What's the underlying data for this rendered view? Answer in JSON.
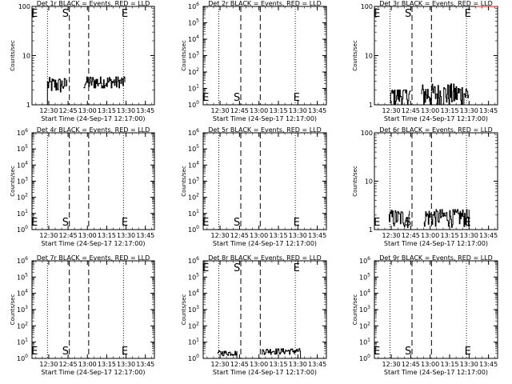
{
  "figure": {
    "start_time_label": "Start Time (24-Sep-17 12:17:00)",
    "ylabel": "Counts/sec",
    "marker_labels": {
      "start_edge": "E",
      "start": "S",
      "end": "E"
    },
    "event_color": "#000000",
    "lld_color": "#ff0000"
  },
  "chart_data": [
    {
      "type": "line",
      "title": "Det 1r BLACK = Events, RED = LLD",
      "ylabel": "Counts/sec",
      "yscale": "log",
      "ylim": [
        1,
        100
      ],
      "yticks": [
        "1",
        "10",
        "100"
      ],
      "x_range": [
        "12:17",
        "13:52"
      ],
      "xticks": [
        "12:30",
        "12:45",
        "13:00",
        "13:15",
        "13:30",
        "13:45"
      ],
      "dotted_lines": [
        "12:29",
        "13:28"
      ],
      "dashed_lines": [
        "12:46",
        "13:01"
      ],
      "marker_positions": {
        "E_left": "12:19",
        "S": "12:43",
        "E_right": "13:29"
      },
      "series": [
        {
          "color": "#000000",
          "segments": [
            {
              "start": "12:29",
              "end": "12:44",
              "base": 2.6,
              "jitter": 0.5,
              "min": 1.2,
              "max": 3.6,
              "initial_ramp_from": 1.0
            },
            {
              "start": "12:57",
              "end": "13:29",
              "base": 2.9,
              "jitter": 0.5,
              "min": 2.2,
              "max": 3.7
            }
          ]
        }
      ],
      "grid": false
    },
    {
      "type": "line",
      "title": "Det 2r BLACK = Events, RED = LLD",
      "ylabel": "Counts/sec",
      "yscale": "log",
      "ylim": [
        1,
        1000000.0
      ],
      "yticks": [
        "10^0",
        "10^1",
        "10^2",
        "10^3",
        "10^4",
        "10^5",
        "10^6"
      ],
      "x_range": [
        "12:17",
        "13:52"
      ],
      "xticks": [
        "12:30",
        "12:45",
        "13:00",
        "13:15",
        "13:30",
        "13:45"
      ],
      "dotted_lines": [
        "12:29",
        "13:28"
      ],
      "dashed_lines": [
        "12:46",
        "13:01"
      ],
      "marker_positions": {
        "E_left": "12:19",
        "S": "12:43",
        "E_right": "13:29"
      },
      "series": [],
      "grid": false
    },
    {
      "type": "line",
      "title": "Det 3r BLACK = Events, RED = LLD",
      "ylabel": "Counts/sec",
      "yscale": "log",
      "ylim": [
        1,
        100
      ],
      "yticks": [
        "1",
        "10",
        "100"
      ],
      "x_range": [
        "12:17",
        "13:52"
      ],
      "xticks": [
        "12:30",
        "12:45",
        "13:00",
        "13:15",
        "13:30",
        "13:45"
      ],
      "dotted_lines": [
        "12:29",
        "13:28"
      ],
      "dashed_lines": [
        "12:46",
        "13:01"
      ],
      "marker_positions": {
        "E_left": "12:19",
        "S": "12:43",
        "E_right": "13:29"
      },
      "series": [
        {
          "color": "#000000",
          "segments": [
            {
              "start": "12:29",
              "end": "12:45",
              "base": 1.6,
              "jitter": 0.4,
              "min": 1.0,
              "max": 2.0
            },
            {
              "start": "12:53",
              "end": "13:30",
              "base": 1.7,
              "jitter": 0.5,
              "min": 1.0,
              "max": 2.8
            }
          ]
        },
        {
          "color": "#ff0000",
          "segments": [
            {
              "start": "13:35",
              "end": "13:52",
              "base": 100,
              "jitter": 0,
              "min": 100,
              "max": 100
            }
          ]
        }
      ],
      "grid": false
    },
    {
      "type": "line",
      "title": "Det 4r BLACK = Events, RED = LLD",
      "ylabel": "Counts/sec",
      "yscale": "log",
      "ylim": [
        1,
        1000000.0
      ],
      "yticks": [
        "10^0",
        "10^1",
        "10^2",
        "10^3",
        "10^4",
        "10^5",
        "10^6"
      ],
      "x_range": [
        "12:17",
        "13:52"
      ],
      "xticks": [
        "12:30",
        "12:45",
        "13:00",
        "13:15",
        "13:30",
        "13:45"
      ],
      "dotted_lines": [
        "12:29",
        "13:28"
      ],
      "dashed_lines": [
        "12:46",
        "13:01"
      ],
      "marker_positions": {
        "E_left": "12:19",
        "S": "12:43",
        "E_right": "13:29"
      },
      "series": [],
      "grid": false
    },
    {
      "type": "line",
      "title": "Det 5r BLACK = Events, RED = LLD",
      "ylabel": "Counts/sec",
      "yscale": "log",
      "ylim": [
        1,
        1000000.0
      ],
      "yticks": [
        "10^0",
        "10^1",
        "10^2",
        "10^3",
        "10^4",
        "10^5",
        "10^6"
      ],
      "x_range": [
        "12:17",
        "13:52"
      ],
      "xticks": [
        "12:30",
        "12:45",
        "13:00",
        "13:15",
        "13:30",
        "13:45"
      ],
      "dotted_lines": [
        "12:29",
        "13:28"
      ],
      "dashed_lines": [
        "12:46",
        "13:01"
      ],
      "marker_positions": {
        "E_left": "12:19",
        "S": "12:43",
        "E_right": "13:29"
      },
      "series": [],
      "grid": false
    },
    {
      "type": "line",
      "title": "Det 6r BLACK = Events, RED = LLD",
      "ylabel": "Counts/sec",
      "yscale": "log",
      "ylim": [
        1,
        100
      ],
      "yticks": [
        "1",
        "10",
        "100"
      ],
      "x_range": [
        "12:17",
        "13:52"
      ],
      "xticks": [
        "12:30",
        "12:45",
        "13:00",
        "13:15",
        "13:30",
        "13:45"
      ],
      "dotted_lines": [
        "12:29",
        "13:28"
      ],
      "dashed_lines": [
        "12:46",
        "13:01"
      ],
      "marker_positions": {
        "E_left": "12:19",
        "S": "12:43",
        "E_right": "13:29"
      },
      "series": [
        {
          "color": "#000000",
          "segments": [
            {
              "start": "12:28",
              "end": "12:44",
              "base": 1.8,
              "jitter": 0.4,
              "min": 1.0,
              "max": 2.6
            },
            {
              "start": "12:55",
              "end": "13:30",
              "base": 1.9,
              "jitter": 0.4,
              "min": 1.0,
              "max": 2.6
            }
          ]
        }
      ],
      "grid": false
    },
    {
      "type": "line",
      "title": "Det 7r BLACK = Events, RED = LLD",
      "ylabel": "Counts/sec",
      "yscale": "log",
      "ylim": [
        1,
        1000000.0
      ],
      "yticks": [
        "10^0",
        "10^1",
        "10^2",
        "10^3",
        "10^4",
        "10^5",
        "10^6"
      ],
      "x_range": [
        "12:17",
        "13:52"
      ],
      "xticks": [
        "12:30",
        "12:45",
        "13:00",
        "13:15",
        "13:30",
        "13:45"
      ],
      "dotted_lines": [
        "12:29",
        "13:28"
      ],
      "dashed_lines": [
        "12:46",
        "13:01"
      ],
      "marker_positions": {
        "E_left": "12:19",
        "S": "12:43",
        "E_right": "13:29"
      },
      "series": [],
      "grid": false
    },
    {
      "type": "line",
      "title": "Det 8r BLACK = Events, RED = LLD",
      "ylabel": "Counts/sec",
      "yscale": "log",
      "ylim": [
        1,
        1000000.0
      ],
      "yticks": [
        "10^0",
        "10^1",
        "10^2",
        "10^3",
        "10^4",
        "10^5",
        "10^6"
      ],
      "x_range": [
        "12:17",
        "13:52"
      ],
      "xticks": [
        "12:30",
        "12:45",
        "13:00",
        "13:15",
        "13:30",
        "13:45"
      ],
      "dotted_lines": [
        "12:29",
        "13:28"
      ],
      "dashed_lines": [
        "12:46",
        "13:01"
      ],
      "marker_positions": {
        "E_left": "12:19",
        "S": "12:43",
        "E_right": "13:29"
      },
      "series": [
        {
          "color": "#000000",
          "segments": [
            {
              "start": "12:28",
              "end": "12:43",
              "base": 2.2,
              "jitter": 0.4,
              "min": 1.0,
              "max": 3.0,
              "final_drop_to": 1.0
            },
            {
              "start": "13:02",
              "end": "13:32",
              "base": 2.9,
              "jitter": 0.6,
              "min": 1.0,
              "max": 5.0,
              "final_drop_to": 1.0
            }
          ]
        }
      ],
      "grid": false
    },
    {
      "type": "line",
      "title": "Det 9r BLACK = Events, RED = LLD",
      "ylabel": "Counts/sec",
      "yscale": "log",
      "ylim": [
        1,
        1000000.0
      ],
      "yticks": [
        "10^0",
        "10^1",
        "10^2",
        "10^3",
        "10^4",
        "10^5",
        "10^6"
      ],
      "x_range": [
        "12:17",
        "13:52"
      ],
      "xticks": [
        "12:30",
        "12:45",
        "13:00",
        "13:15",
        "13:30",
        "13:45"
      ],
      "dotted_lines": [
        "12:29",
        "13:28"
      ],
      "dashed_lines": [
        "12:46",
        "13:01"
      ],
      "marker_positions": {
        "E_left": "12:19",
        "S": "12:43",
        "E_right": "13:29"
      },
      "series": [],
      "grid": false
    }
  ]
}
